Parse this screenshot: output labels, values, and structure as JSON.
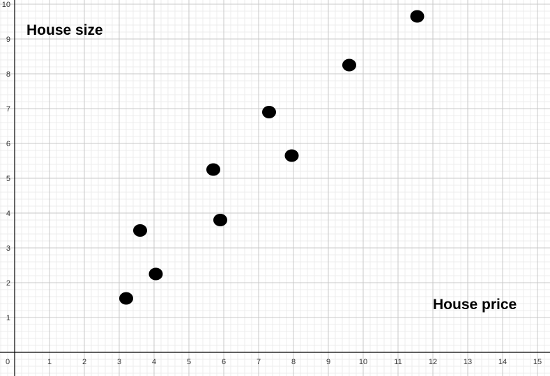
{
  "chart_data": {
    "type": "scatter",
    "xlabel": "House price",
    "ylabel": "House size",
    "xlim": [
      0,
      15
    ],
    "ylim": [
      0,
      10
    ],
    "xticks": [
      0,
      1,
      2,
      3,
      4,
      5,
      6,
      7,
      8,
      9,
      10,
      11,
      12,
      13,
      14,
      15
    ],
    "yticks": [
      1,
      2,
      3,
      4,
      5,
      6,
      7,
      8,
      9,
      10
    ],
    "grid": true,
    "minor_grid": true,
    "point_color": "#000000",
    "points": [
      {
        "x": 3.2,
        "y": 1.55
      },
      {
        "x": 3.6,
        "y": 3.5
      },
      {
        "x": 4.05,
        "y": 2.25
      },
      {
        "x": 5.7,
        "y": 5.25
      },
      {
        "x": 5.9,
        "y": 3.8
      },
      {
        "x": 7.3,
        "y": 6.9
      },
      {
        "x": 7.95,
        "y": 5.65
      },
      {
        "x": 9.6,
        "y": 8.25
      },
      {
        "x": 11.55,
        "y": 9.65
      }
    ]
  }
}
